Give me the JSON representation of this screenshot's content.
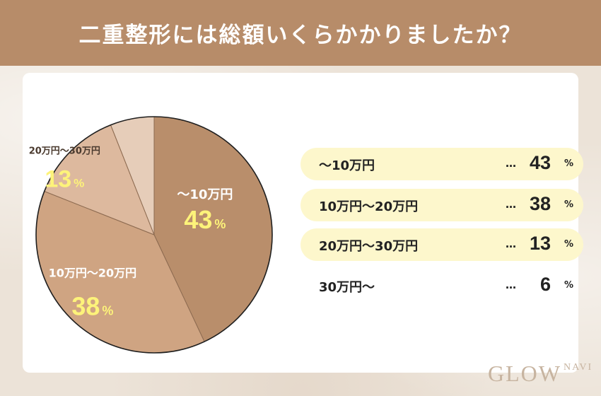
{
  "header": {
    "title": "二重整形には総額いくらかかりましたか？"
  },
  "colors": {
    "header_bg": "#b78c69",
    "slice_colors": [
      "#b98e6b",
      "#cfa482",
      "#ddb99e",
      "#e6cdb9"
    ],
    "highlight_bg": "#fdf7cc",
    "value_label_color": "#fdf37a",
    "logo_color": "#c7b4a0"
  },
  "chart_data": {
    "type": "pie",
    "title": "",
    "categories": [
      "〜10万円",
      "10万円〜20万円",
      "20万円〜30万円",
      "30万円〜"
    ],
    "values": [
      43,
      38,
      13,
      6
    ],
    "unit": "%",
    "legend_placement": "right",
    "slice_labels": [
      {
        "category": "〜10万円",
        "value": "43",
        "unit": "%"
      },
      {
        "category": "10万円〜20万円",
        "value": "38",
        "unit": "%"
      },
      {
        "category": "20万円〜30万円",
        "value": "13",
        "unit": "%"
      }
    ]
  },
  "legend": {
    "dots": "…",
    "percent_sign": "%",
    "rows": [
      {
        "label": "〜10万円",
        "value": "43",
        "highlighted": true
      },
      {
        "label": "10万円〜20万円",
        "value": "38",
        "highlighted": true
      },
      {
        "label": "20万円〜30万円",
        "value": "13",
        "highlighted": true
      },
      {
        "label": "30万円〜",
        "value": "6",
        "highlighted": false
      }
    ]
  },
  "logo": {
    "text": "GLOW",
    "sub": "NAVI"
  }
}
